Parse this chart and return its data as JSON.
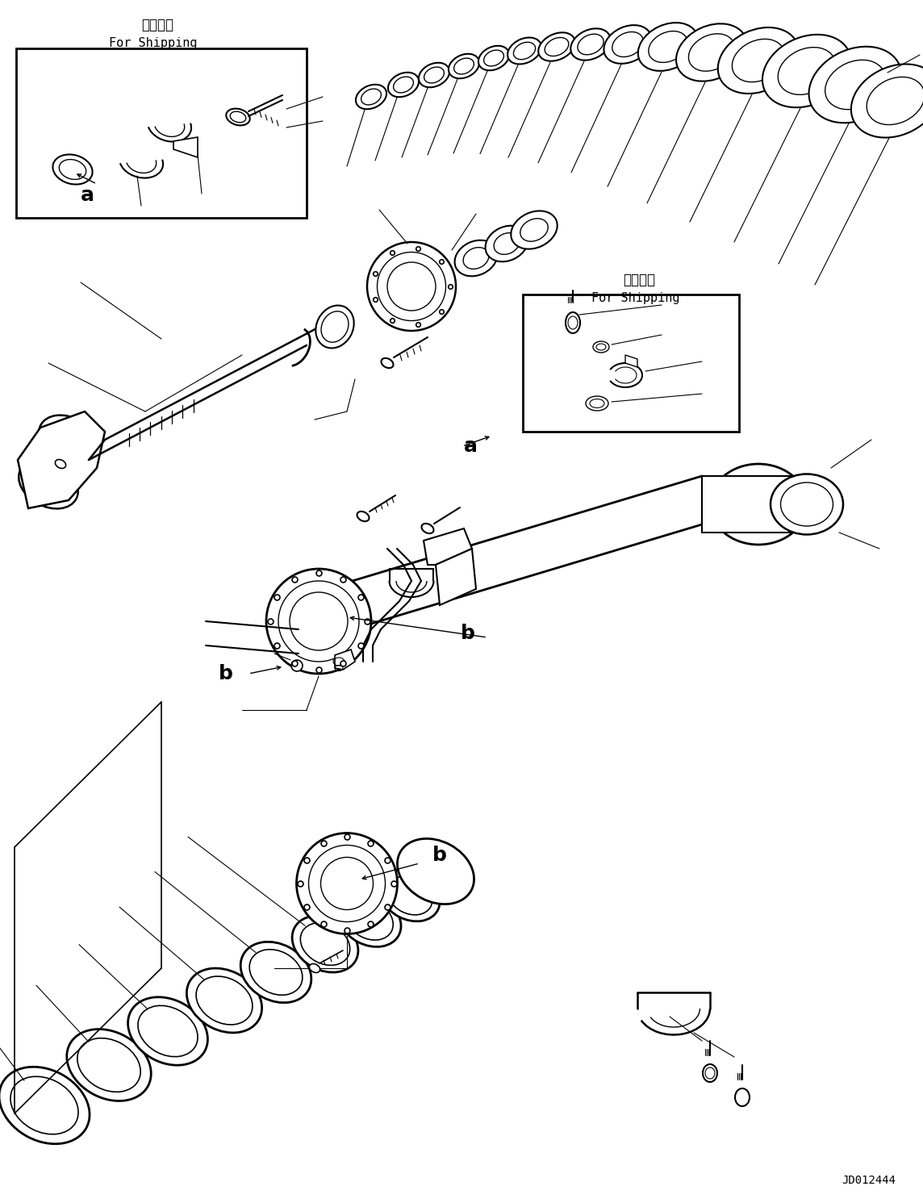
{
  "fig_width": 11.44,
  "fig_height": 14.91,
  "dpi": 100,
  "bg_color": "#ffffff",
  "line_color": "#000000",
  "title_top_jp": "運搜部品",
  "title_top_en": "For Shipping",
  "title_right_jp": "運搜部品",
  "title_right_en": "For Shipping",
  "label_a_left": "a",
  "label_a_right": "a",
  "label_b_left": "b",
  "label_b_right": "b",
  "catalog_number": "JD012444"
}
